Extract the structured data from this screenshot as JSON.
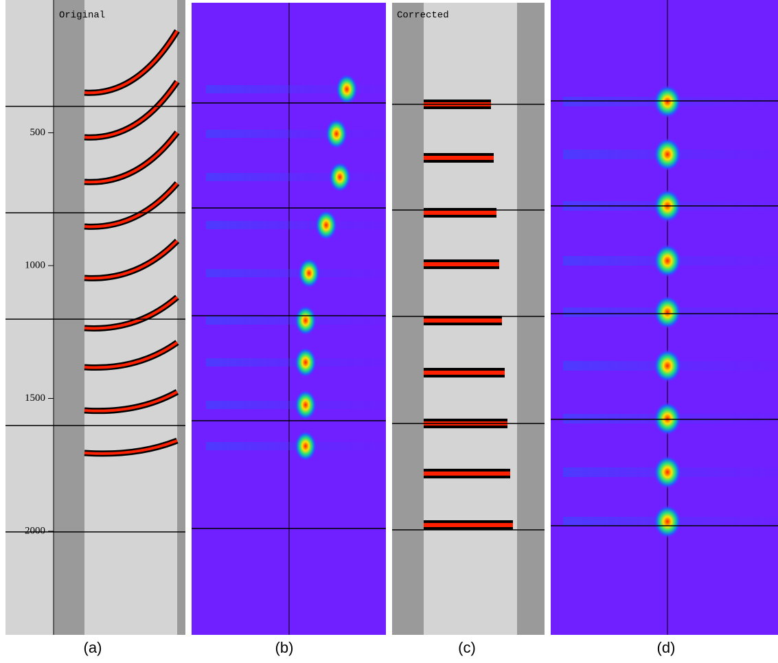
{
  "axis": {
    "ticks": [
      500,
      1000,
      1500,
      2000
    ]
  },
  "panels": [
    {
      "title": "Original",
      "label": "(a)"
    },
    {
      "label": "(b)"
    },
    {
      "title": "Corrected",
      "label": "(c)"
    },
    {
      "label": "(d)"
    }
  ]
}
